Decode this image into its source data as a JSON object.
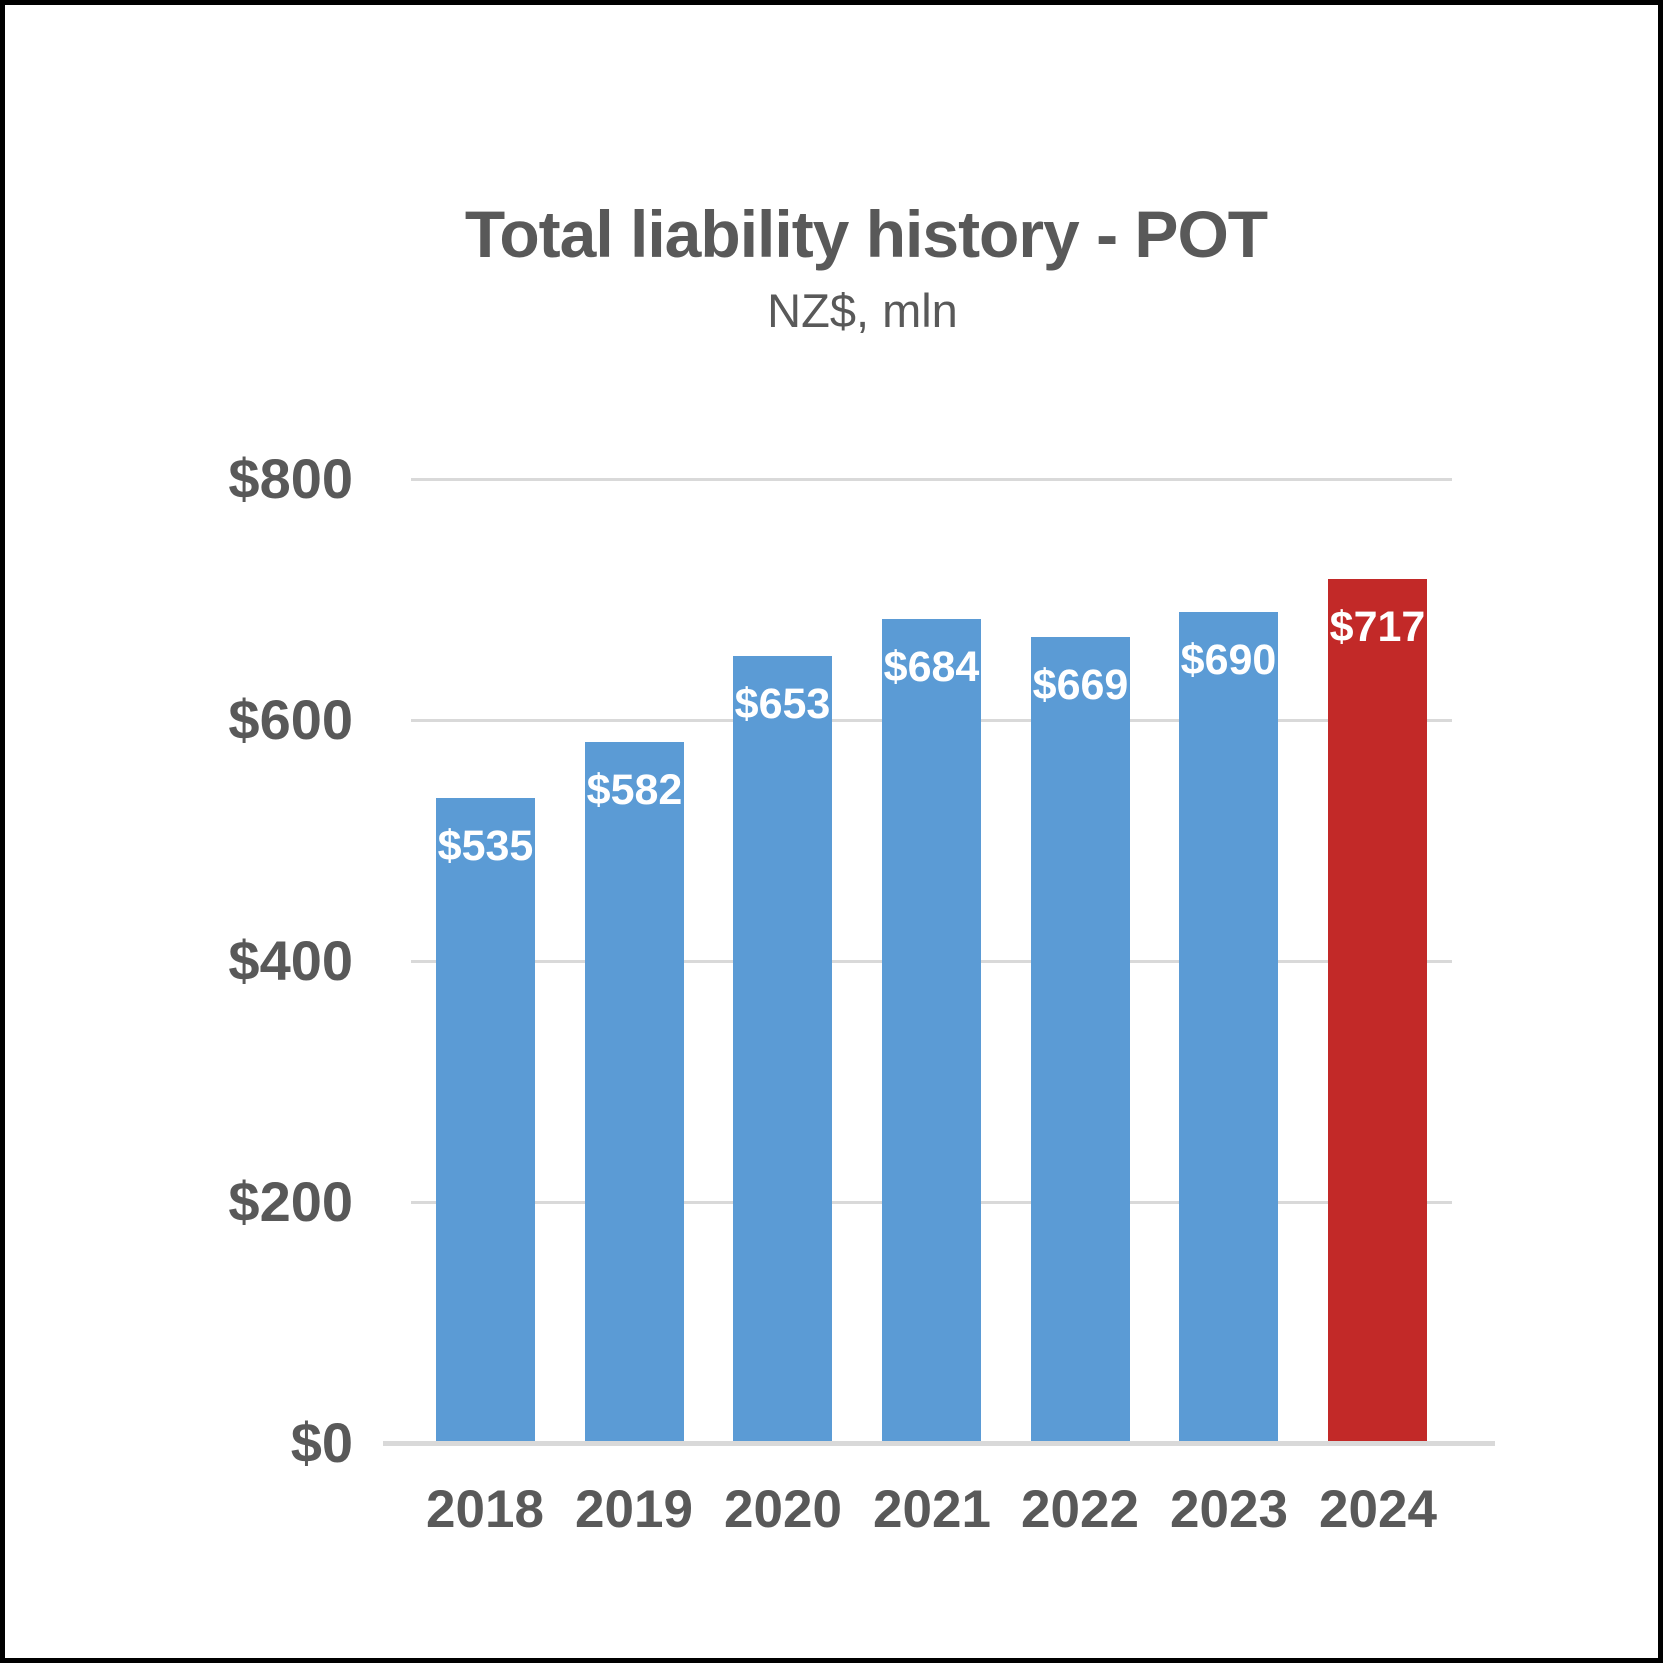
{
  "chart_data": {
    "type": "bar",
    "title": "Total liability history - POT",
    "subtitle": "NZ$, mln",
    "categories": [
      "2018",
      "2019",
      "2020",
      "2021",
      "2022",
      "2023",
      "2024"
    ],
    "values": [
      535,
      582,
      653,
      684,
      669,
      690,
      717
    ],
    "value_labels": [
      "$535",
      "$582",
      "$653",
      "$684",
      "$669",
      "$690",
      "$717"
    ],
    "ytick_values": [
      0,
      200,
      400,
      600,
      800
    ],
    "ytick_labels": [
      "$0",
      "$200",
      "$400",
      "$600",
      "$800"
    ],
    "ylim": [
      0,
      800
    ],
    "grid": true,
    "legend": false,
    "colors": {
      "bar_default": "#5B9BD5",
      "bar_highlight": "#C22928",
      "highlight_index": 6,
      "value_label": "#FFFFFF",
      "axis_text": "#595959",
      "gridline": "#D9D9D9"
    }
  }
}
